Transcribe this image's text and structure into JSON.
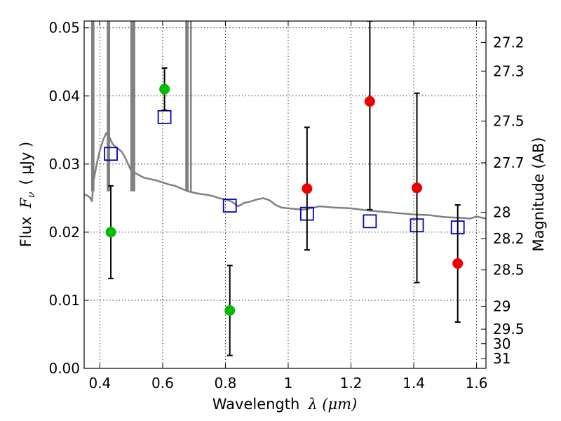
{
  "chart_data": {
    "type": "scatter",
    "xlabel": "Wavelength",
    "xlabel_math": "λ (μm)",
    "ylabel": "Flux",
    "ylabel_math": "F",
    "ylabel_math_sub": "ν",
    "ylabel_unit": "( μJy )",
    "y2label": "Magnitude (AB)",
    "xlim": [
      0.35,
      1.63
    ],
    "ylim": [
      0.0,
      0.051
    ],
    "grid": true,
    "x_ticks": [
      {
        "v": 0.4,
        "label": "0.4"
      },
      {
        "v": 0.6,
        "label": "0.6"
      },
      {
        "v": 0.8,
        "label": "0.8"
      },
      {
        "v": 1.0,
        "label": "1"
      },
      {
        "v": 1.2,
        "label": "1.2"
      },
      {
        "v": 1.4,
        "label": "1.4"
      },
      {
        "v": 1.6,
        "label": "1.6"
      }
    ],
    "y_ticks": [
      {
        "v": 0.0,
        "label": "0.00"
      },
      {
        "v": 0.01,
        "label": "0.01"
      },
      {
        "v": 0.02,
        "label": "0.02"
      },
      {
        "v": 0.03,
        "label": "0.03"
      },
      {
        "v": 0.04,
        "label": "0.04"
      },
      {
        "v": 0.05,
        "label": "0.05"
      }
    ],
    "y2_ticks": [
      {
        "label": "27.2",
        "mag": 27.2
      },
      {
        "label": "27.3",
        "mag": 27.3
      },
      {
        "label": "27.5",
        "mag": 27.5
      },
      {
        "label": "27.7",
        "mag": 27.7
      },
      {
        "label": "28",
        "mag": 28.0
      },
      {
        "label": "28.2",
        "mag": 28.2
      },
      {
        "label": "28.5",
        "mag": 28.5
      },
      {
        "label": "29",
        "mag": 29.0
      },
      {
        "label": "29.5",
        "mag": 29.5
      },
      {
        "label": "30",
        "mag": 30.0
      },
      {
        "label": "31",
        "mag": 31.0
      }
    ],
    "series": [
      {
        "kind": "spectrum",
        "color": "#808080",
        "points": [
          [
            0.35,
            0.0255
          ],
          [
            0.36,
            0.0254
          ],
          [
            0.37,
            0.025
          ],
          [
            0.375,
            0.0245
          ],
          [
            0.38,
            0.0275
          ],
          [
            0.39,
            0.03
          ],
          [
            0.4,
            0.032
          ],
          [
            0.41,
            0.0335
          ],
          [
            0.42,
            0.0345
          ],
          [
            0.43,
            0.034
          ],
          [
            0.44,
            0.033
          ],
          [
            0.45,
            0.0325
          ],
          [
            0.46,
            0.0322
          ],
          [
            0.47,
            0.0318
          ],
          [
            0.48,
            0.031
          ],
          [
            0.49,
            0.03
          ],
          [
            0.5,
            0.029
          ],
          [
            0.52,
            0.0285
          ],
          [
            0.54,
            0.028
          ],
          [
            0.56,
            0.0278
          ],
          [
            0.58,
            0.0276
          ],
          [
            0.6,
            0.0273
          ],
          [
            0.62,
            0.027
          ],
          [
            0.64,
            0.0268
          ],
          [
            0.66,
            0.0264
          ],
          [
            0.68,
            0.026
          ],
          [
            0.7,
            0.0258
          ],
          [
            0.72,
            0.0256
          ],
          [
            0.74,
            0.0255
          ],
          [
            0.76,
            0.0253
          ],
          [
            0.78,
            0.025
          ],
          [
            0.8,
            0.0248
          ],
          [
            0.82,
            0.0245
          ],
          [
            0.84,
            0.0238
          ],
          [
            0.86,
            0.0243
          ],
          [
            0.88,
            0.0245
          ],
          [
            0.9,
            0.0248
          ],
          [
            0.92,
            0.025
          ],
          [
            0.94,
            0.0247
          ],
          [
            0.96,
            0.024
          ],
          [
            0.98,
            0.0236
          ],
          [
            1.0,
            0.0235
          ],
          [
            1.05,
            0.0233
          ],
          [
            1.1,
            0.0238
          ],
          [
            1.15,
            0.0236
          ],
          [
            1.2,
            0.0235
          ],
          [
            1.25,
            0.0232
          ],
          [
            1.3,
            0.023
          ],
          [
            1.35,
            0.0228
          ],
          [
            1.4,
            0.0226
          ],
          [
            1.45,
            0.0225
          ],
          [
            1.5,
            0.0222
          ],
          [
            1.55,
            0.0221
          ],
          [
            1.58,
            0.022
          ],
          [
            1.6,
            0.0223
          ],
          [
            1.63,
            0.022
          ]
        ],
        "emission_lines": [
          0.375,
          0.38,
          0.425,
          0.43,
          0.5,
          0.505,
          0.51,
          0.675,
          0.68,
          0.69
        ]
      },
      {
        "kind": "model",
        "marker": "open-square",
        "color": "#0000cc",
        "points": [
          {
            "x": 0.435,
            "y": 0.0315
          },
          {
            "x": 0.606,
            "y": 0.0369
          },
          {
            "x": 0.814,
            "y": 0.0239
          },
          {
            "x": 1.06,
            "y": 0.0227
          },
          {
            "x": 1.26,
            "y": 0.0216
          },
          {
            "x": 1.41,
            "y": 0.021
          },
          {
            "x": 1.54,
            "y": 0.0207
          }
        ]
      },
      {
        "kind": "observed-detection",
        "marker": "filled-circle",
        "color": "#00bb00",
        "points": [
          {
            "x": 0.435,
            "y": 0.02,
            "lo": 0.0132,
            "hi": 0.0268
          },
          {
            "x": 0.606,
            "y": 0.041,
            "lo": 0.0379,
            "hi": 0.0441
          },
          {
            "x": 0.814,
            "y": 0.0085,
            "lo": 0.0019,
            "hi": 0.0151
          }
        ]
      },
      {
        "kind": "observed-nondetection",
        "marker": "filled-circle",
        "color": "#ee0000",
        "points": [
          {
            "x": 1.06,
            "y": 0.0264,
            "lo": 0.0174,
            "hi": 0.0354
          },
          {
            "x": 1.26,
            "y": 0.0392,
            "lo": 0.0233,
            "hi": 0.051
          },
          {
            "x": 1.41,
            "y": 0.0265,
            "lo": 0.0126,
            "hi": 0.0404
          },
          {
            "x": 1.54,
            "y": 0.0154,
            "lo": 0.0068,
            "hi": 0.024
          }
        ]
      }
    ]
  }
}
